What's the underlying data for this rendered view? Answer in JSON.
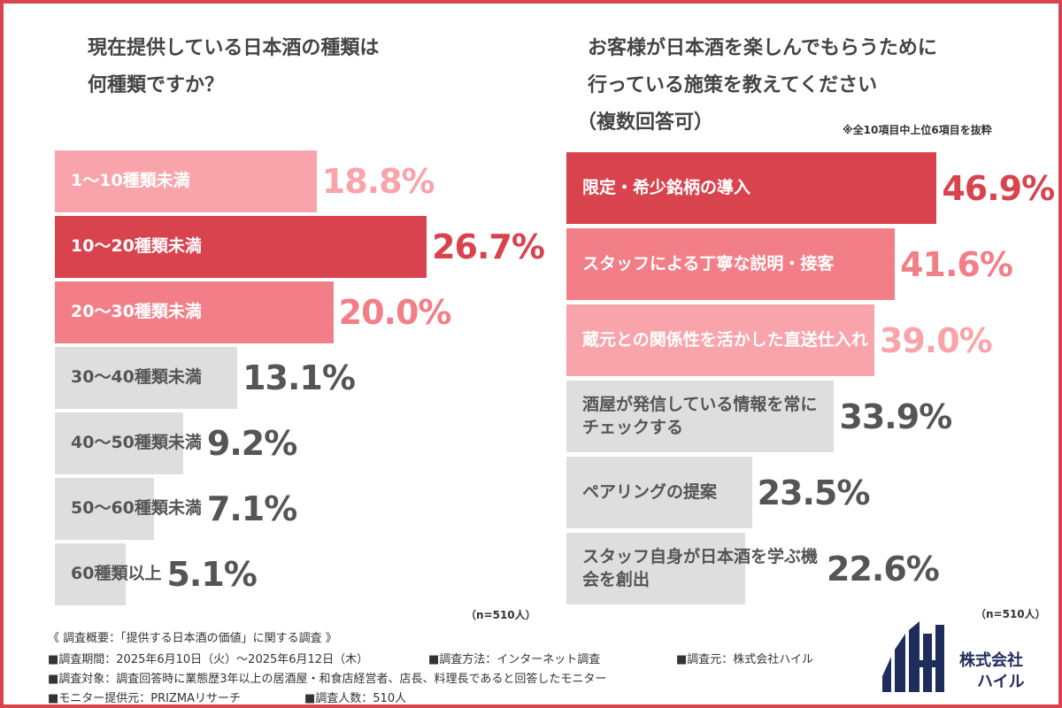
{
  "chart_data": [
    {
      "type": "bar",
      "orientation": "horizontal",
      "title": [
        "現在提供している日本酒の種類は",
        "何種類ですか？"
      ],
      "categories": [
        "1～10種類未満",
        "10～20種類未満",
        "20～30種類未満",
        "30～40種類未満",
        "40～50種類未満",
        "50～60種類未満",
        "60種類以上"
      ],
      "values": [
        18.8,
        26.7,
        20.0,
        13.1,
        9.2,
        7.1,
        5.1
      ],
      "value_labels": [
        "18.8%",
        "26.7%",
        "20.0%",
        "13.1%",
        "9.2%",
        "7.1%",
        "5.1%"
      ],
      "colors": [
        "#f9a4aa",
        "#d9434e",
        "#f27f88",
        "#dedede",
        "#dedede",
        "#dedede",
        "#dedede"
      ],
      "label_colors": [
        "#f9a4aa",
        "#d9434e",
        "#f27f88",
        "#555555",
        "#555555",
        "#555555",
        "#555555"
      ],
      "xlim": [
        0,
        30
      ],
      "sample": "（n=510人）"
    },
    {
      "type": "bar",
      "orientation": "horizontal",
      "title": [
        "お客様が日本酒を楽しんでもらうために",
        "行っている施策を教えてください",
        "（複数回答可）"
      ],
      "note": "※全10項目中上位6項目を抜粋",
      "categories": [
        "限定・希少銘柄の導入",
        "スタッフによる丁寧な説明・接客",
        "蔵元との関係性を活かした直送仕入れ",
        "酒屋が発信している情報を常にチェックする",
        "ペアリングの提案",
        "スタッフ自身が日本酒を学ぶ機会を創出"
      ],
      "values": [
        46.9,
        41.6,
        39.0,
        33.9,
        23.5,
        22.6
      ],
      "value_labels": [
        "46.9%",
        "41.6%",
        "39.0%",
        "33.9%",
        "23.5%",
        "22.6%"
      ],
      "colors": [
        "#d9434e",
        "#f27f88",
        "#f9a4aa",
        "#dedede",
        "#dedede",
        "#dedede"
      ],
      "label_colors": [
        "#d9434e",
        "#f27f88",
        "#f9a4aa",
        "#555555",
        "#555555",
        "#555555"
      ],
      "xlim": [
        0,
        50
      ],
      "sample": "（n=510人）"
    }
  ],
  "survey": {
    "heading": "《 調査概要：「提供する日本酒の価値」に関する調査 》",
    "rows": [
      [
        "■調査期間：2025年6月10日（火）～2025年6月12日（木）",
        "■調査方法：インターネット調査",
        "■調査元：株式会社ハイル"
      ],
      [
        "■調査対象：調査回答時に業態歴3年以上の居酒屋・和食店経営者、店長、料理長であると回答したモニター"
      ],
      [
        "■モニター提供元：PRIZMAリサーチ",
        "■調査人数：510人"
      ]
    ]
  },
  "logo": {
    "line1": "株式会社",
    "line2": "ハイル"
  }
}
